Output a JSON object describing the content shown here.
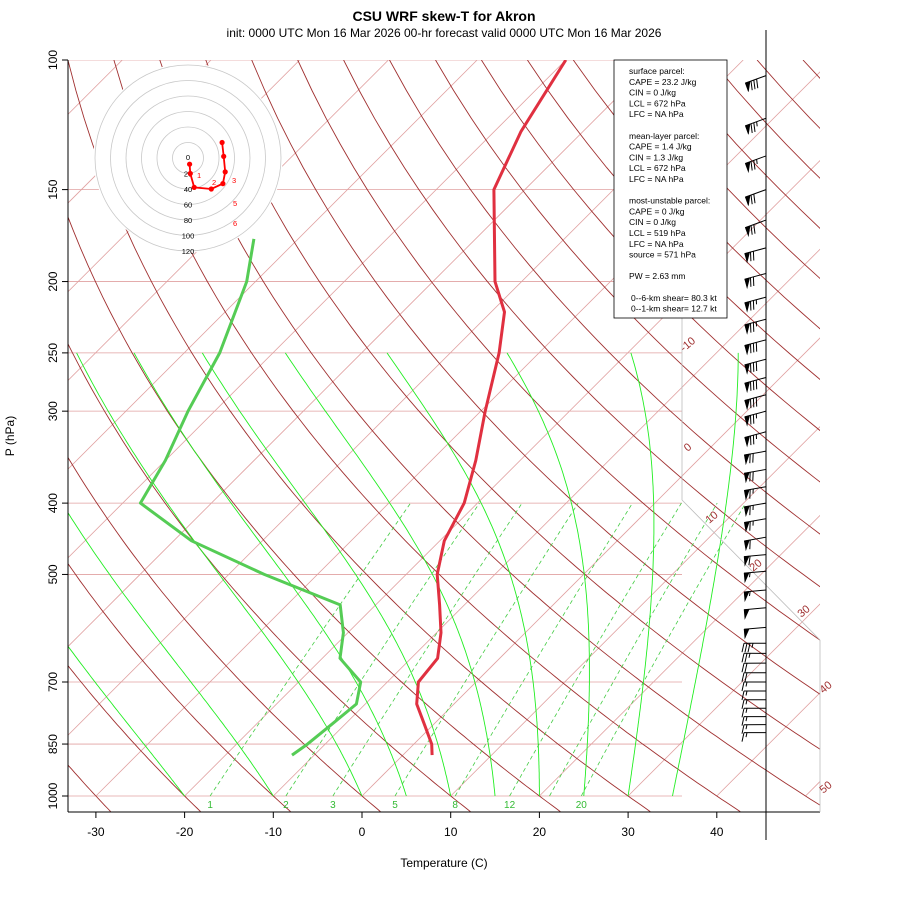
{
  "chart_data": {
    "type": "skew-t",
    "title": "CSU WRF skew-T for Akron",
    "subtitle": "init: 0000 UTC Mon 16 Mar 2026     00-hr forecast valid 0000 UTC Mon 16 Mar 2026",
    "xlabel": "Temperature (C)",
    "ylabel": "P (hPa)",
    "xlim": [
      -33,
      45
    ],
    "ylim": [
      1000,
      100
    ],
    "y_scale": "log",
    "x_ticks": [
      -30,
      -20,
      -10,
      0,
      10,
      20,
      30,
      40
    ],
    "y_ticks": [
      100,
      150,
      200,
      250,
      300,
      400,
      500,
      700,
      850,
      1000
    ],
    "isotherm_labels": [
      -10,
      0,
      10,
      20,
      30,
      40,
      50
    ],
    "mixing_ratio_labels": [
      1,
      2,
      3,
      5,
      8,
      12,
      20
    ],
    "temperature_profile": {
      "color": "#e03040",
      "points": [
        [
          880,
          3.3
        ],
        [
          850,
          2.0
        ],
        [
          800,
          -1.0
        ],
        [
          750,
          -4.2
        ],
        [
          700,
          -6.5
        ],
        [
          650,
          -7.0
        ],
        [
          600,
          -9.5
        ],
        [
          550,
          -12.8
        ],
        [
          500,
          -16.5
        ],
        [
          450,
          -19.5
        ],
        [
          400,
          -21.5
        ],
        [
          350,
          -25.0
        ],
        [
          300,
          -29.5
        ],
        [
          250,
          -34.5
        ],
        [
          220,
          -38.5
        ],
        [
          200,
          -43.0
        ],
        [
          150,
          -53.5
        ],
        [
          125,
          -57.0
        ],
        [
          100,
          -60.0
        ]
      ]
    },
    "dewpoint_profile": {
      "color": "#55cc55",
      "points": [
        [
          880,
          -12.5
        ],
        [
          850,
          -12.0
        ],
        [
          800,
          -11.5
        ],
        [
          750,
          -11.0
        ],
        [
          700,
          -13.0
        ],
        [
          650,
          -18.0
        ],
        [
          600,
          -20.5
        ],
        [
          550,
          -24.0
        ],
        [
          500,
          -36.0
        ],
        [
          450,
          -48.0
        ],
        [
          400,
          -58.0
        ],
        [
          350,
          -60.0
        ],
        [
          300,
          -63.0
        ],
        [
          250,
          -66.0
        ],
        [
          200,
          -71.0
        ],
        [
          175,
          -75.0
        ]
      ]
    },
    "parcel_info": {
      "lines": [
        "surface parcel:",
        "CAPE = 23.2 J/kg",
        "CIN = 0 J/kg",
        "LCL = 672 hPa",
        "LFC = NA hPa",
        "",
        "mean-layer parcel:",
        "CAPE = 1.4 J/kg",
        "CIN = 1.3 J/kg",
        "LCL = 672 hPa",
        "LFC = NA hPa",
        "",
        "most-unstable parcel:",
        "CAPE = 0 J/kg",
        "CIN = 0 J/kg",
        "LCL = 519 hPa",
        "LFC = NA hPa",
        "source = 571 hPa",
        "",
        "PW =  2.63 mm",
        "",
        "0--6-km shear= 80.3 kt",
        "0--1-km shear= 12.7 kt"
      ]
    },
    "hodograph": {
      "ring_labels": [
        "0",
        "20",
        "40",
        "60",
        "80",
        "100",
        "120"
      ],
      "height_labels": [
        "1",
        "2",
        "3",
        "5",
        "6"
      ],
      "trace_points": [
        [
          2,
          8
        ],
        [
          3,
          20
        ],
        [
          8,
          38
        ],
        [
          30,
          40
        ],
        [
          45,
          33
        ],
        [
          48,
          18
        ],
        [
          46,
          -2
        ],
        [
          44,
          -20
        ]
      ]
    },
    "wind_barbs": [
      {
        "p": 105,
        "dir": 250,
        "kt": 80
      },
      {
        "p": 120,
        "dir": 250,
        "kt": 75
      },
      {
        "p": 135,
        "dir": 250,
        "kt": 75
      },
      {
        "p": 150,
        "dir": 250,
        "kt": 70
      },
      {
        "p": 165,
        "dir": 250,
        "kt": 70
      },
      {
        "p": 180,
        "dir": 255,
        "kt": 70
      },
      {
        "p": 195,
        "dir": 255,
        "kt": 70
      },
      {
        "p": 210,
        "dir": 255,
        "kt": 75
      },
      {
        "p": 225,
        "dir": 255,
        "kt": 75
      },
      {
        "p": 240,
        "dir": 255,
        "kt": 80
      },
      {
        "p": 255,
        "dir": 255,
        "kt": 80
      },
      {
        "p": 270,
        "dir": 255,
        "kt": 80
      },
      {
        "p": 285,
        "dir": 255,
        "kt": 80
      },
      {
        "p": 300,
        "dir": 255,
        "kt": 75
      },
      {
        "p": 320,
        "dir": 255,
        "kt": 75
      },
      {
        "p": 340,
        "dir": 260,
        "kt": 70
      },
      {
        "p": 360,
        "dir": 260,
        "kt": 70
      },
      {
        "p": 380,
        "dir": 260,
        "kt": 65
      },
      {
        "p": 400,
        "dir": 260,
        "kt": 65
      },
      {
        "p": 420,
        "dir": 260,
        "kt": 65
      },
      {
        "p": 445,
        "dir": 260,
        "kt": 60
      },
      {
        "p": 470,
        "dir": 265,
        "kt": 60
      },
      {
        "p": 495,
        "dir": 265,
        "kt": 55
      },
      {
        "p": 525,
        "dir": 265,
        "kt": 55
      },
      {
        "p": 555,
        "dir": 265,
        "kt": 50
      },
      {
        "p": 590,
        "dir": 265,
        "kt": 50
      },
      {
        "p": 620,
        "dir": 270,
        "kt": 35
      },
      {
        "p": 640,
        "dir": 270,
        "kt": 25
      },
      {
        "p": 660,
        "dir": 270,
        "kt": 20
      },
      {
        "p": 680,
        "dir": 270,
        "kt": 20
      },
      {
        "p": 700,
        "dir": 270,
        "kt": 15
      },
      {
        "p": 720,
        "dir": 270,
        "kt": 15
      },
      {
        "p": 740,
        "dir": 270,
        "kt": 15
      },
      {
        "p": 760,
        "dir": 270,
        "kt": 15
      },
      {
        "p": 780,
        "dir": 270,
        "kt": 15
      },
      {
        "p": 800,
        "dir": 270,
        "kt": 15
      },
      {
        "p": 820,
        "dir": 270,
        "kt": 15
      }
    ],
    "colors": {
      "dry_adiabat": "#a03030",
      "moist_adiabat": "#22ee22",
      "mixing_ratio": "#44cc44",
      "isobar": "#e0a0a0",
      "isotherm": "#e0a0a0",
      "hodo_trace": "#ff0000"
    }
  }
}
